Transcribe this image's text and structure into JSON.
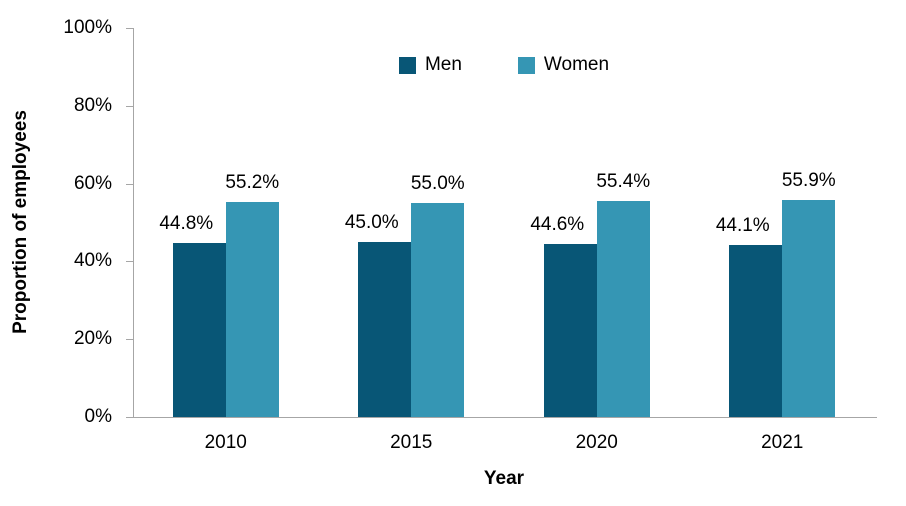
{
  "chart_data": {
    "type": "bar",
    "title": "",
    "categories": [
      "2010",
      "2015",
      "2020",
      "2021"
    ],
    "series": [
      {
        "name": "Men",
        "color": "#085676",
        "values": [
          44.8,
          45.0,
          44.6,
          44.1
        ],
        "labels": [
          "44.8%",
          "45.0%",
          "44.6%",
          "44.1%"
        ]
      },
      {
        "name": "Women",
        "color": "#3596B4",
        "values": [
          55.2,
          55.0,
          55.4,
          55.9
        ],
        "labels": [
          "55.2%",
          "55.0%",
          "55.4%",
          "55.9%"
        ]
      }
    ],
    "xlabel": "Year",
    "ylabel": "Proportion of employees",
    "ylim": [
      0,
      100
    ],
    "yticks": [
      0,
      20,
      40,
      60,
      80,
      100
    ],
    "ytick_labels": [
      "0%",
      "20%",
      "40%",
      "60%",
      "80%",
      "100%"
    ],
    "grid": false,
    "legend_position": "top-center",
    "axis_color": "#A6A6A6",
    "text_color": "#000000",
    "background": "#FFFFFF"
  }
}
